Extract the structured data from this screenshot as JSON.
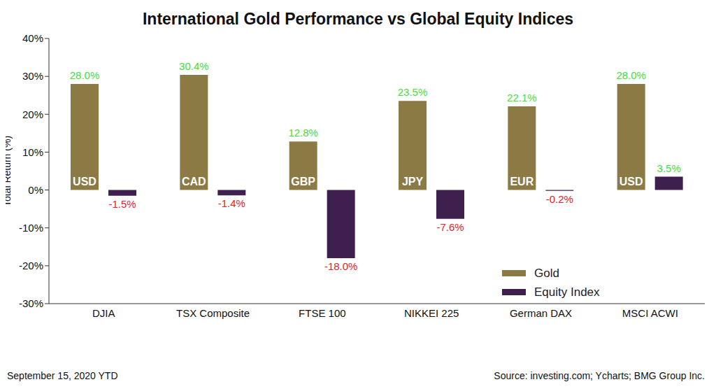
{
  "chart_data": {
    "type": "bar",
    "title": "International Gold Performance vs Global Equity Indices",
    "y_label": "Total Return (%)",
    "note": "September 15, 2020 YTD",
    "source": "Source: investing.com; Ycharts; BMG Group Inc.",
    "categories": [
      "DJIA",
      "TSX Composite",
      "FTSE 100",
      "NIKKEI 225",
      "German DAX",
      "MSCI ACWI"
    ],
    "series": [
      {
        "name": "Gold",
        "color": "#8c7a45",
        "values": [
          28.0,
          30.4,
          12.8,
          23.5,
          22.1,
          28.0
        ],
        "value_labels": [
          "28.0%",
          "30.4%",
          "12.8%",
          "23.5%",
          "22.1%",
          "28.0%"
        ],
        "inner_labels": [
          "USD",
          "CAD",
          "GBP",
          "JPY",
          "EUR",
          "USD"
        ]
      },
      {
        "name": "Equity Index",
        "color": "#3e1f4e",
        "values": [
          -1.5,
          -1.4,
          -18.0,
          -7.6,
          -0.2,
          3.5
        ],
        "value_labels": [
          "-1.5%",
          "-1.4%",
          "-18.0%",
          "-7.6%",
          "-0.2%",
          "3.5%"
        ]
      }
    ],
    "ylim": [
      -30,
      40
    ],
    "yticks": [
      {
        "value": -30,
        "label": "-30%"
      },
      {
        "value": -20,
        "label": "-20%"
      },
      {
        "value": -10,
        "label": "-10%"
      },
      {
        "value": 0,
        "label": "0%"
      },
      {
        "value": 10,
        "label": "10%"
      },
      {
        "value": 20,
        "label": "20%"
      },
      {
        "value": 30,
        "label": "30%"
      },
      {
        "value": 40,
        "label": "40%"
      }
    ],
    "grid": false,
    "data_labels": true,
    "legend": "lower right"
  }
}
